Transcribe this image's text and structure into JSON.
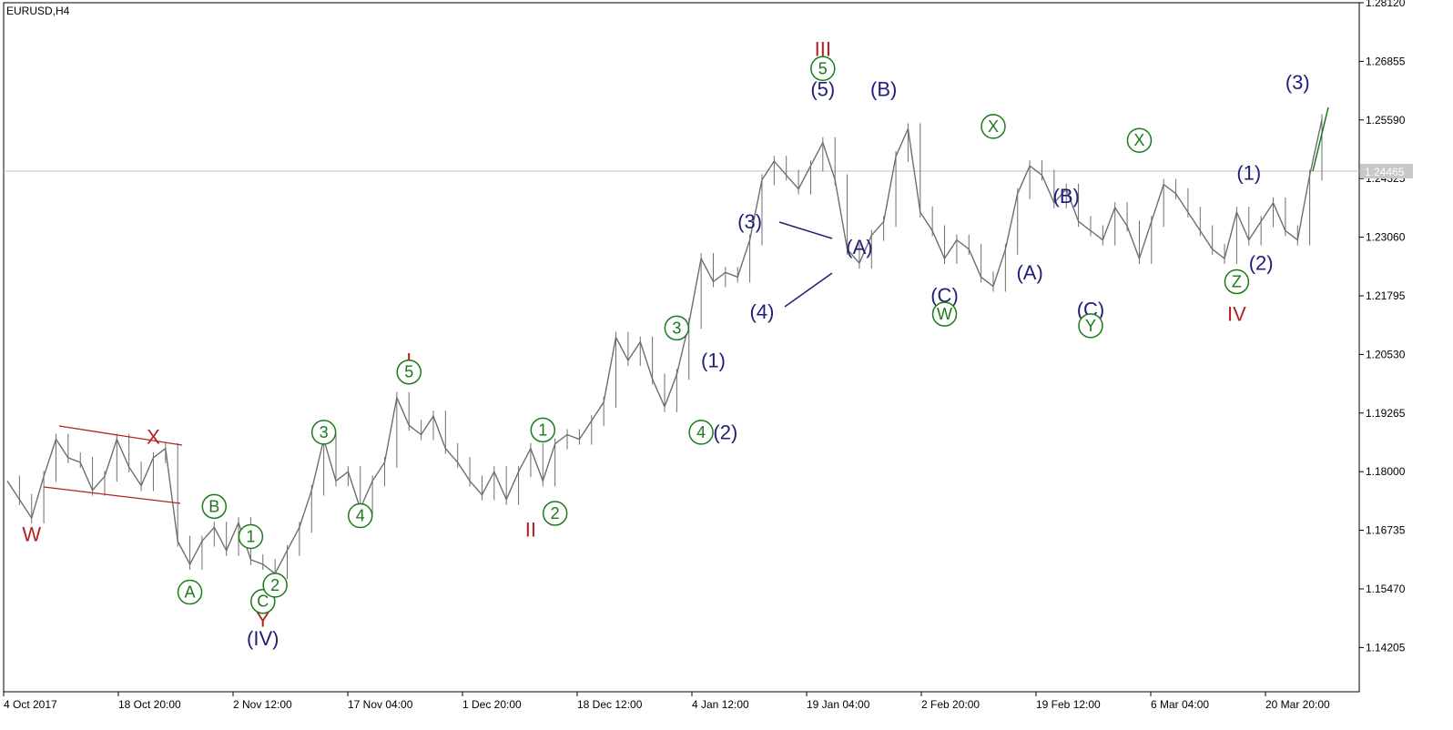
{
  "chart_data": {
    "type": "line",
    "symbol": "EURUSD,H4",
    "current_price": "1.24465",
    "x_tick_labels": [
      "4 Oct 2017",
      "18 Oct 20:00",
      "2 Nov 12:00",
      "17 Nov 04:00",
      "1 Dec 20:00",
      "18 Dec 12:00",
      "4 Jan 12:00",
      "19 Jan 04:00",
      "2 Feb 20:00",
      "19 Feb 12:00",
      "6 Mar 04:00",
      "20 Mar 20:00"
    ],
    "y_tick_labels": [
      "1.28120",
      "1.26855",
      "1.25590",
      "1.24325",
      "1.23060",
      "1.21795",
      "1.20530",
      "1.19265",
      "1.18000",
      "1.16735",
      "1.15470",
      "1.14205"
    ],
    "ylim": [
      1.1325,
      1.2812
    ],
    "series": [
      {
        "values": [
          1.178,
          1.174,
          1.17,
          1.179,
          1.187,
          1.183,
          1.182,
          1.176,
          1.179,
          1.187,
          1.181,
          1.177,
          1.183,
          1.185,
          1.165,
          1.16,
          1.165,
          1.168,
          1.163,
          1.169,
          1.161,
          1.16,
          1.158,
          1.163,
          1.168,
          1.176,
          1.187,
          1.178,
          1.18,
          1.172,
          1.178,
          1.182,
          1.196,
          1.19,
          1.188,
          1.192,
          1.185,
          1.182,
          1.178,
          1.175,
          1.18,
          1.174,
          1.18,
          1.185,
          1.178,
          1.186,
          1.188,
          1.187,
          1.191,
          1.195,
          1.209,
          1.204,
          1.208,
          1.2,
          1.194,
          1.201,
          1.212,
          1.226,
          1.221,
          1.223,
          1.222,
          1.23,
          1.243,
          1.247,
          1.244,
          1.241,
          1.246,
          1.251,
          1.243,
          1.228,
          1.225,
          1.231,
          1.234,
          1.248,
          1.254,
          1.236,
          1.232,
          1.226,
          1.23,
          1.228,
          1.222,
          1.22,
          1.228,
          1.24,
          1.246,
          1.244,
          1.238,
          1.241,
          1.234,
          1.232,
          1.23,
          1.237,
          1.233,
          1.226,
          1.234,
          1.242,
          1.24,
          1.236,
          1.232,
          1.228,
          1.226,
          1.236,
          1.23,
          1.234,
          1.238,
          1.232,
          1.23,
          1.244,
          1.256
        ]
      }
    ],
    "annotations": [
      {
        "text": "W",
        "x": 2,
        "y": 1.1665,
        "color": "red"
      },
      {
        "text": "X",
        "x": 12,
        "y": 1.1875,
        "color": "red"
      },
      {
        "text": "A",
        "x": 15,
        "y": 1.154,
        "color": "green",
        "circled": true
      },
      {
        "text": "B",
        "x": 17,
        "y": 1.1725,
        "color": "green",
        "circled": true
      },
      {
        "text": "1",
        "x": 20,
        "y": 1.166,
        "color": "green",
        "circled": true
      },
      {
        "text": "C",
        "x": 21,
        "y": 1.152,
        "color": "green",
        "circled": true
      },
      {
        "text": "2",
        "x": 22,
        "y": 1.1555,
        "color": "green",
        "circled": true
      },
      {
        "text": "Y",
        "x": 21,
        "y": 1.148,
        "color": "red"
      },
      {
        "text": "(IV)",
        "x": 21,
        "y": 1.144,
        "color": "blue"
      },
      {
        "text": "3",
        "x": 26,
        "y": 1.1885,
        "color": "green",
        "circled": true
      },
      {
        "text": "4",
        "x": 29,
        "y": 1.1705,
        "color": "green",
        "circled": true
      },
      {
        "text": "I",
        "x": 33,
        "y": 1.204,
        "color": "red"
      },
      {
        "text": "5",
        "x": 33,
        "y": 1.2015,
        "color": "green",
        "circled": true
      },
      {
        "text": "1",
        "x": 44,
        "y": 1.189,
        "color": "green",
        "circled": true
      },
      {
        "text": "II",
        "x": 43,
        "y": 1.1675,
        "color": "red"
      },
      {
        "text": "2",
        "x": 45,
        "y": 1.171,
        "color": "green",
        "circled": true
      },
      {
        "text": "3",
        "x": 55,
        "y": 1.211,
        "color": "green",
        "circled": true
      },
      {
        "text": "(1)",
        "x": 58,
        "y": 1.204,
        "color": "blue"
      },
      {
        "text": "4",
        "x": 57,
        "y": 1.1885,
        "color": "green",
        "circled": true
      },
      {
        "text": "(2)",
        "x": 59,
        "y": 1.1885,
        "color": "blue"
      },
      {
        "text": "(3)",
        "x": 61,
        "y": 1.234,
        "color": "blue"
      },
      {
        "text": "(4)",
        "x": 62,
        "y": 1.2145,
        "color": "blue"
      },
      {
        "text": "III",
        "x": 67,
        "y": 1.2712,
        "color": "red"
      },
      {
        "text": "5",
        "x": 67,
        "y": 1.267,
        "color": "green",
        "circled": true
      },
      {
        "text": "(5)",
        "x": 67,
        "y": 1.2625,
        "color": "blue"
      },
      {
        "text": "(A)",
        "x": 70,
        "y": 1.2285,
        "color": "blue"
      },
      {
        "text": "(B)",
        "x": 72,
        "y": 1.2625,
        "color": "blue"
      },
      {
        "text": "(C)",
        "x": 77,
        "y": 1.218,
        "color": "blue"
      },
      {
        "text": "W",
        "x": 77,
        "y": 1.214,
        "color": "green",
        "circled": true
      },
      {
        "text": "X",
        "x": 81,
        "y": 1.2545,
        "color": "green",
        "circled": true
      },
      {
        "text": "(B)",
        "x": 87,
        "y": 1.2395,
        "color": "blue"
      },
      {
        "text": "(A)",
        "x": 84,
        "y": 1.223,
        "color": "blue"
      },
      {
        "text": "(C)",
        "x": 89,
        "y": 1.215,
        "color": "blue"
      },
      {
        "text": "Y",
        "x": 89,
        "y": 1.2115,
        "color": "green",
        "circled": true
      },
      {
        "text": "X",
        "x": 93,
        "y": 1.2515,
        "color": "green",
        "circled": true
      },
      {
        "text": "(1)",
        "x": 102,
        "y": 1.2445,
        "color": "blue"
      },
      {
        "text": "(2)",
        "x": 103,
        "y": 1.225,
        "color": "blue"
      },
      {
        "text": "Z",
        "x": 101,
        "y": 1.221,
        "color": "green",
        "circled": true
      },
      {
        "text": "IV",
        "x": 101,
        "y": 1.214,
        "color": "red"
      },
      {
        "text": "(3)",
        "x": 106,
        "y": 1.264,
        "color": "blue"
      }
    ]
  },
  "colors": {
    "price": "#6e6e6e",
    "red": "#b22222",
    "blue": "#1f1f7a",
    "green": "#1a7a1a",
    "current_line": "#c0c0c0",
    "current_box": "#c8c8c8"
  }
}
